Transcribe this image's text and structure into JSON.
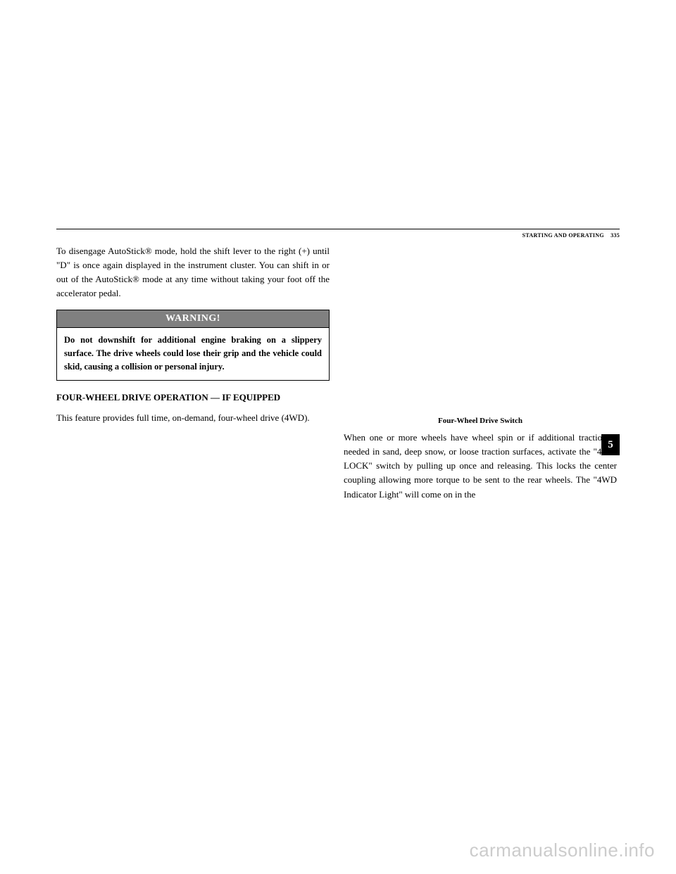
{
  "header": {
    "section_label": "STARTING AND OPERATING",
    "page_number": "335"
  },
  "left_column": {
    "paragraph_1": "To disengage AutoStick® mode, hold the shift lever to the right (+) until \"D\" is once again displayed in the instrument cluster. You can shift in or out of the AutoStick® mode at any time without taking your foot off the accelerator pedal.",
    "warning": {
      "title": "WARNING!",
      "body": "Do not downshift for additional engine braking on a slippery surface. The drive wheels could lose their grip and the vehicle could skid, causing a collision or personal injury."
    },
    "section_heading": "FOUR-WHEEL DRIVE OPERATION — IF EQUIPPED",
    "paragraph_2": "This feature provides full time, on-demand, four-wheel drive (4WD)."
  },
  "right_column": {
    "figure_caption": "Four-Wheel Drive Switch",
    "paragraph_1": "When one or more wheels have wheel spin or if additional traction is needed in sand, deep snow, or loose traction surfaces, activate the \"4WD LOCK\" switch by pulling up once and releasing. This locks the center coupling allowing more torque to be sent to the rear wheels. The \"4WD Indicator Light\" will come on in the"
  },
  "section_tab": "5",
  "watermark": "carmanualsonline.info"
}
